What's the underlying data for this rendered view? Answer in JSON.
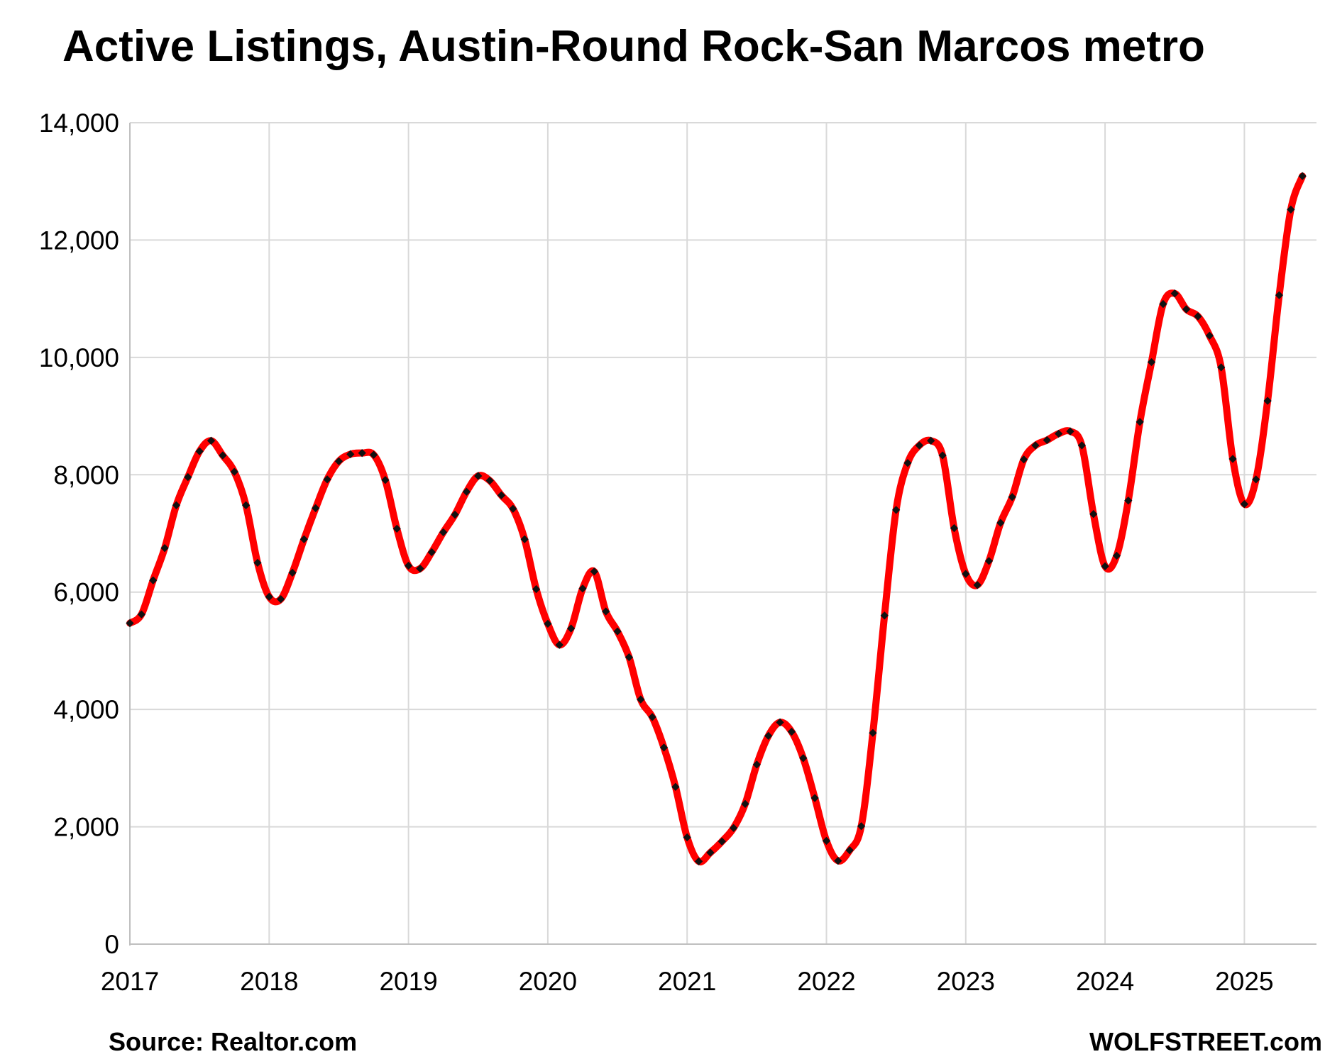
{
  "chart_data": {
    "type": "line",
    "title": "Active Listings, Austin-Round Rock-San Marcos metro",
    "xlabel": "",
    "ylabel": "",
    "ylim": [
      0,
      14000
    ],
    "y_ticks": [
      "0",
      "2,000",
      "4,000",
      "6,000",
      "8,000",
      "10,000",
      "12,000",
      "14,000"
    ],
    "x_ticks": [
      "2017",
      "2018",
      "2019",
      "2020",
      "2021",
      "2022",
      "2023",
      "2024",
      "2025"
    ],
    "grid": true,
    "colors": {
      "line": "#ff0000",
      "markers": "#111111",
      "grid": "#d9d9d9"
    },
    "series": [
      {
        "values": [
          [
            "2017-01",
            5470
          ],
          [
            "2017-02",
            5620
          ],
          [
            "2017-03",
            6200
          ],
          [
            "2017-04",
            6750
          ],
          [
            "2017-05",
            7480
          ],
          [
            "2017-06",
            7960
          ],
          [
            "2017-07",
            8400
          ],
          [
            "2017-08",
            8580
          ],
          [
            "2017-09",
            8330
          ],
          [
            "2017-10",
            8050
          ],
          [
            "2017-11",
            7480
          ],
          [
            "2017-12",
            6500
          ],
          [
            "2018-01",
            5920
          ],
          [
            "2018-02",
            5880
          ],
          [
            "2018-03",
            6330
          ],
          [
            "2018-04",
            6900
          ],
          [
            "2018-05",
            7430
          ],
          [
            "2018-06",
            7920
          ],
          [
            "2018-07",
            8230
          ],
          [
            "2018-08",
            8350
          ],
          [
            "2018-09",
            8370
          ],
          [
            "2018-10",
            8340
          ],
          [
            "2018-11",
            7910
          ],
          [
            "2018-12",
            7080
          ],
          [
            "2019-01",
            6450
          ],
          [
            "2019-02",
            6400
          ],
          [
            "2019-03",
            6680
          ],
          [
            "2019-04",
            7020
          ],
          [
            "2019-05",
            7320
          ],
          [
            "2019-06",
            7710
          ],
          [
            "2019-07",
            7980
          ],
          [
            "2019-08",
            7900
          ],
          [
            "2019-09",
            7650
          ],
          [
            "2019-10",
            7420
          ],
          [
            "2019-11",
            6900
          ],
          [
            "2019-12",
            6050
          ],
          [
            "2020-01",
            5460
          ],
          [
            "2020-02",
            5100
          ],
          [
            "2020-03",
            5380
          ],
          [
            "2020-04",
            6060
          ],
          [
            "2020-05",
            6350
          ],
          [
            "2020-06",
            5670
          ],
          [
            "2020-07",
            5330
          ],
          [
            "2020-08",
            4890
          ],
          [
            "2020-09",
            4170
          ],
          [
            "2020-10",
            3870
          ],
          [
            "2020-11",
            3350
          ],
          [
            "2020-12",
            2680
          ],
          [
            "2021-01",
            1820
          ],
          [
            "2021-02",
            1410
          ],
          [
            "2021-03",
            1560
          ],
          [
            "2021-04",
            1750
          ],
          [
            "2021-05",
            1980
          ],
          [
            "2021-06",
            2390
          ],
          [
            "2021-07",
            3060
          ],
          [
            "2021-08",
            3550
          ],
          [
            "2021-09",
            3780
          ],
          [
            "2021-10",
            3620
          ],
          [
            "2021-11",
            3170
          ],
          [
            "2021-12",
            2490
          ],
          [
            "2022-01",
            1760
          ],
          [
            "2022-02",
            1420
          ],
          [
            "2022-03",
            1600
          ],
          [
            "2022-04",
            2010
          ],
          [
            "2022-05",
            3600
          ],
          [
            "2022-06",
            5600
          ],
          [
            "2022-07",
            7400
          ],
          [
            "2022-08",
            8200
          ],
          [
            "2022-09",
            8500
          ],
          [
            "2022-10",
            8580
          ],
          [
            "2022-11",
            8330
          ],
          [
            "2022-12",
            7090
          ],
          [
            "2023-01",
            6310
          ],
          [
            "2023-02",
            6120
          ],
          [
            "2023-03",
            6530
          ],
          [
            "2023-04",
            7180
          ],
          [
            "2023-05",
            7620
          ],
          [
            "2023-06",
            8260
          ],
          [
            "2023-07",
            8500
          ],
          [
            "2023-08",
            8590
          ],
          [
            "2023-09",
            8700
          ],
          [
            "2023-10",
            8740
          ],
          [
            "2023-11",
            8500
          ],
          [
            "2023-12",
            7330
          ],
          [
            "2024-01",
            6440
          ],
          [
            "2024-02",
            6620
          ],
          [
            "2024-03",
            7560
          ],
          [
            "2024-04",
            8900
          ],
          [
            "2024-05",
            9920
          ],
          [
            "2024-06",
            10910
          ],
          [
            "2024-07",
            11090
          ],
          [
            "2024-08",
            10820
          ],
          [
            "2024-09",
            10700
          ],
          [
            "2024-10",
            10370
          ],
          [
            "2024-11",
            9830
          ],
          [
            "2024-12",
            8270
          ],
          [
            "2025-01",
            7500
          ],
          [
            "2025-02",
            7920
          ],
          [
            "2025-03",
            9260
          ],
          [
            "2025-04",
            11060
          ],
          [
            "2025-05",
            12520
          ],
          [
            "2025-06",
            13090
          ]
        ]
      }
    ]
  },
  "notes": {
    "source": "Source: Realtor.com",
    "credit": "WOLFSTREET.com"
  }
}
